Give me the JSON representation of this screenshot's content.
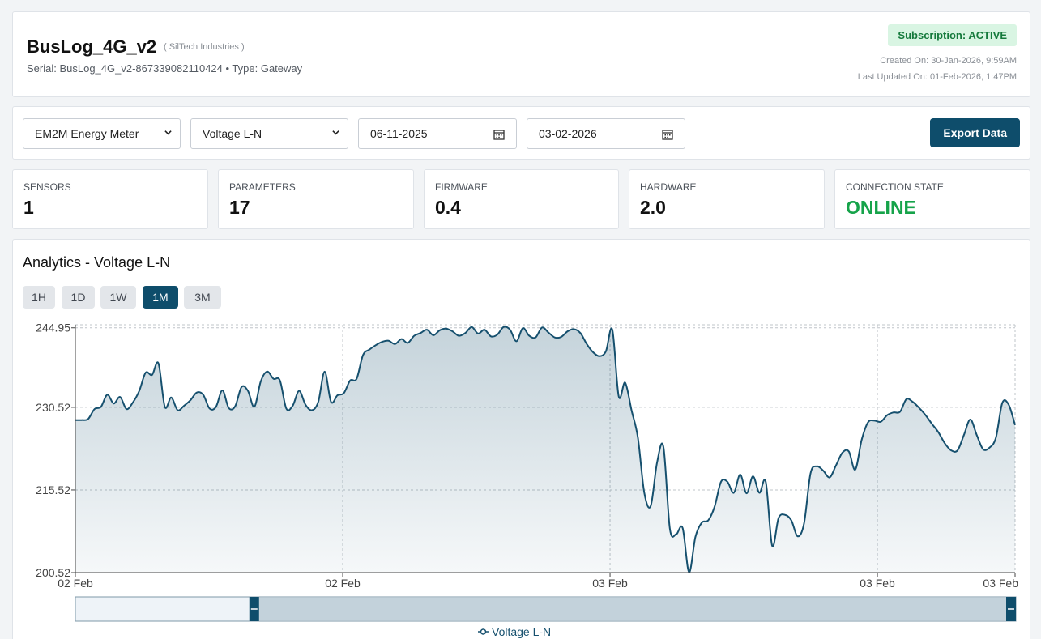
{
  "device": {
    "name": "BusLog_4G_v2",
    "company": "( SilTech Industries )",
    "serial_line": "Serial: BusLog_4G_v2-867339082110424 • Type: Gateway",
    "subscription": "Subscription: ACTIVE",
    "created": "Created On: 30-Jan-2026, 9:59AM",
    "updated": "Last Updated On: 01-Feb-2026, 1:47PM"
  },
  "toolbar": {
    "meter_select": "EM2M Energy Meter",
    "parameter_select": "Voltage L-N",
    "date_from": "06-11-2025",
    "date_to": "03-02-2026",
    "export_label": "Export Data"
  },
  "stats": [
    {
      "label": "SENSORS",
      "value": "1"
    },
    {
      "label": "PARAMETERS",
      "value": "17"
    },
    {
      "label": "FIRMWARE",
      "value": "0.4"
    },
    {
      "label": "HARDWARE",
      "value": "2.0"
    },
    {
      "label": "CONNECTION STATE",
      "value": "ONLINE"
    }
  ],
  "colors": {
    "accent": "#0e4d6b",
    "online": "#16a34a",
    "line": "#16506e",
    "badge_bg": "#d9f5e3"
  },
  "analytics": {
    "title": "Analytics - Voltage L-N",
    "ranges": [
      "1H",
      "1D",
      "1W",
      "1M",
      "3M"
    ],
    "active_range": "1M"
  },
  "chart_data": {
    "type": "area",
    "title": "Analytics - Voltage L-N",
    "xlabel": "",
    "ylabel": "",
    "y_ticks": [
      "244.95",
      "230.52",
      "215.52",
      "200.52"
    ],
    "x_ticks": [
      "02 Feb",
      "02 Feb",
      "03 Feb",
      "03 Feb",
      "03 Feb"
    ],
    "ylim": [
      200.52,
      245.5
    ],
    "grid": true,
    "legend": "bottom-center",
    "zoom_slider": {
      "start": 0.185,
      "end": 1.0
    },
    "series": [
      {
        "name": "Voltage L-N",
        "values": [
          228.2,
          228.2,
          228.4,
          230.2,
          230.6,
          232.8,
          231.2,
          232.4,
          230.2,
          231.4,
          233.5,
          236.8,
          236.4,
          238.5,
          230.6,
          232.3,
          230.0,
          230.8,
          231.8,
          233.2,
          232.8,
          230.3,
          230.6,
          233.6,
          230.4,
          230.7,
          234.2,
          233.5,
          230.6,
          235.2,
          237.0,
          235.7,
          235.4,
          230.3,
          230.8,
          233.5,
          231.0,
          230.0,
          231.5,
          237.0,
          231.5,
          232.7,
          233.1,
          235.4,
          235.7,
          240.0,
          241.0,
          241.8,
          242.4,
          242.6,
          242.0,
          242.9,
          242.2,
          243.5,
          244.0,
          244.6,
          243.6,
          244.5,
          244.8,
          244.3,
          243.5,
          244.0,
          245.1,
          243.9,
          244.6,
          243.4,
          243.7,
          245.1,
          244.6,
          242.5,
          244.9,
          243.5,
          243.2,
          245.0,
          244.1,
          243.2,
          243.3,
          244.3,
          244.7,
          244.0,
          242.0,
          240.5,
          239.8,
          240.7,
          244.6,
          232.5,
          235.0,
          230.0,
          225.0,
          215.0,
          212.6,
          220.5,
          223.3,
          208.5,
          207.5,
          208.6,
          200.6,
          207.0,
          209.6,
          210.0,
          212.5,
          217.0,
          217.0,
          215.0,
          218.3,
          214.9,
          218.0,
          215.0,
          217.0,
          205.4,
          210.4,
          211.0,
          210.0,
          207.1,
          209.5,
          218.5,
          219.8,
          219.0,
          217.8,
          220.0,
          222.3,
          222.5,
          219.2,
          224.6,
          227.8,
          228.1,
          227.9,
          229.1,
          229.6,
          229.7,
          232.0,
          231.5,
          230.4,
          229.1,
          227.5,
          226.0,
          224.0,
          222.7,
          222.7,
          225.5,
          228.3,
          225.5,
          222.9,
          223.2,
          225.0,
          231.3,
          231.0,
          227.3
        ]
      }
    ]
  }
}
